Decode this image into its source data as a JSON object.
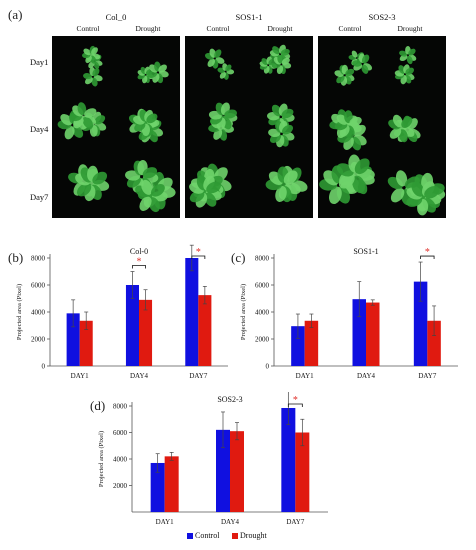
{
  "panel_a": {
    "letter": "(a)",
    "genotypes": [
      "Col_0",
      "SOS1-1",
      "SOS2-3"
    ],
    "conditions": [
      "Control",
      "Drought"
    ],
    "days": [
      "Day1",
      "Day4",
      "Day7"
    ]
  },
  "colors": {
    "control": "#1010e0",
    "drought": "#e01a10",
    "significance": "#e0302a",
    "plant": "#2f9a34",
    "plant_light": "#6fd46c"
  },
  "legend": {
    "control": "Control",
    "drought": "Drought"
  },
  "chart_data": [
    {
      "id": "b",
      "letter": "(b)",
      "type": "bar",
      "title": "Col-0",
      "xlabel": "",
      "ylabel": "Projected area (Pixel)",
      "categories": [
        "DAY1",
        "DAY4",
        "DAY7"
      ],
      "ylim": [
        0,
        8000
      ],
      "yticks": [
        0,
        2000,
        4000,
        6000,
        8000
      ],
      "series": [
        {
          "name": "Control",
          "values": [
            3900,
            6000,
            8000
          ],
          "errors": [
            1000,
            1000,
            950
          ]
        },
        {
          "name": "Drought",
          "values": [
            3350,
            4900,
            5250
          ],
          "errors": [
            650,
            750,
            650
          ]
        }
      ],
      "significance": [
        {
          "category": "DAY4",
          "label": "*"
        },
        {
          "category": "DAY7",
          "label": "*"
        }
      ]
    },
    {
      "id": "c",
      "letter": "(c)",
      "type": "bar",
      "title": "SOS1-1",
      "xlabel": "",
      "ylabel": "Projected area (Pixel)",
      "categories": [
        "DAY1",
        "DAY4",
        "DAY7"
      ],
      "ylim": [
        0,
        8000
      ],
      "yticks": [
        0,
        2000,
        4000,
        6000,
        8000
      ],
      "series": [
        {
          "name": "Control",
          "values": [
            2950,
            4950,
            6250
          ],
          "errors": [
            900,
            1300,
            1450
          ]
        },
        {
          "name": "Drought",
          "values": [
            3350,
            4700,
            3350
          ],
          "errors": [
            500,
            200,
            1100
          ]
        }
      ],
      "significance": [
        {
          "category": "DAY7",
          "label": "*"
        }
      ]
    },
    {
      "id": "d",
      "letter": "(d)",
      "type": "bar",
      "title": "SOS2-3",
      "xlabel": "",
      "ylabel": "Projected area (Pixel)",
      "categories": [
        "DAY1",
        "DAY4",
        "DAY7"
      ],
      "ylim": [
        0,
        8000
      ],
      "yticks": [
        2000,
        4000,
        6000,
        8000
      ],
      "series": [
        {
          "name": "Control",
          "values": [
            3700,
            6200,
            7850
          ],
          "errors": [
            700,
            1350,
            1250
          ]
        },
        {
          "name": "Drought",
          "values": [
            4200,
            6100,
            6000
          ],
          "errors": [
            300,
            650,
            1000
          ]
        }
      ],
      "significance": [
        {
          "category": "DAY7",
          "label": "*"
        }
      ]
    }
  ]
}
